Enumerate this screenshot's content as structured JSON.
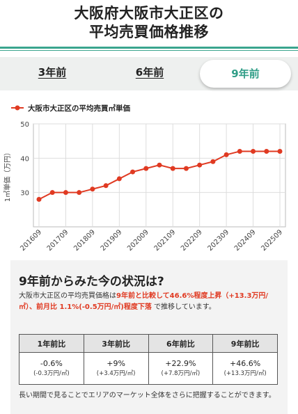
{
  "page": {
    "title_line1": "大阪府大阪市大正区の",
    "title_line2": "平均売買価格推移"
  },
  "tabs": [
    {
      "label": "3年前",
      "active": false
    },
    {
      "label": "6年前",
      "active": false
    },
    {
      "label": "9年前",
      "active": true
    }
  ],
  "chart_data": {
    "type": "line",
    "legend": "大阪市大正区の平均売買㎡単価",
    "ylabel": "1㎡単価（万円）",
    "xlabel": "",
    "ylim": [
      20,
      50
    ],
    "yticks": [
      30,
      40,
      50
    ],
    "grid": true,
    "color": "#e03a22",
    "x": [
      "201609",
      "201703",
      "201709",
      "201803",
      "201809",
      "201903",
      "201909",
      "202003",
      "202009",
      "202103",
      "202109",
      "202203",
      "202209",
      "202303",
      "202309",
      "202403",
      "202409",
      "202503",
      "202509"
    ],
    "xtick_labels": [
      "201609",
      "201709",
      "201809",
      "201909",
      "202009",
      "202109",
      "202209",
      "202309",
      "202409",
      "202509"
    ],
    "series": [
      {
        "name": "大阪市大正区の平均売買㎡単価",
        "values": [
          28,
          30,
          30,
          30,
          31,
          32,
          34,
          36,
          37,
          38,
          37,
          37,
          38,
          39,
          41,
          42,
          42,
          42,
          42
        ]
      }
    ]
  },
  "summary": {
    "heading": "9年前からみた今の状況は?",
    "text_intro": "大阪市大正区の平均売買価格は",
    "text_hl1": "9年前と比較して46.6%程度上昇（+13.3万円/㎡）、前月比 1.1%(-0.5万円/㎡)程度下落",
    "text_outro": " で推移しています。",
    "table": {
      "headers": [
        "1年前比",
        "3年前比",
        "6年前比",
        "9年前比"
      ],
      "values": [
        "-0.6%",
        "+9%",
        "+22.9%",
        "+46.6%"
      ],
      "subs": [
        "(-0.3万円/㎡)",
        "(+3.4万円/㎡)",
        "(+7.8万円/㎡)",
        "(+13.3万円/㎡)"
      ]
    },
    "note": "長い期間で見ることでエリアのマーケット全体をさらに把握することができます。"
  }
}
